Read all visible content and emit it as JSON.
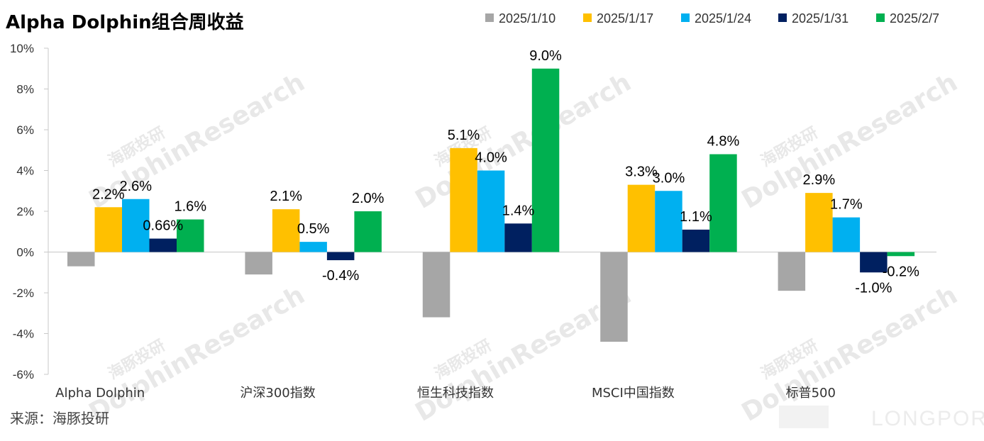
{
  "title": "Alpha Dolphin组合周收益",
  "source": "来源：海豚投研",
  "watermark": {
    "cn": "海豚投研",
    "en": "DolphinResearch",
    "brand": "LONGPORT"
  },
  "chart_data": {
    "type": "bar",
    "categories": [
      "Alpha Dolphin",
      "沪深300指数",
      "恒生科技指数",
      "MSCI中国指数",
      "标普500"
    ],
    "series": [
      {
        "name": "2025/1/10",
        "color": "#a6a6a6",
        "values": [
          -0.7,
          -1.1,
          -3.2,
          -4.4,
          -1.9
        ],
        "labels": [
          "",
          "",
          "",
          "",
          ""
        ]
      },
      {
        "name": "2025/1/17",
        "color": "#ffc000",
        "values": [
          2.2,
          2.1,
          5.1,
          3.3,
          2.9
        ],
        "labels": [
          "2.2%",
          "2.1%",
          "5.1%",
          "3.3%",
          "2.9%"
        ]
      },
      {
        "name": "2025/1/24",
        "color": "#00b0f0",
        "values": [
          2.6,
          0.5,
          4.0,
          3.0,
          1.7
        ],
        "labels": [
          "2.6%",
          "0.5%",
          "4.0%",
          "3.0%",
          "1.7%"
        ]
      },
      {
        "name": "2025/1/31",
        "color": "#002060",
        "values": [
          0.66,
          -0.4,
          1.4,
          1.1,
          -1.0
        ],
        "labels": [
          "0.66%",
          "-0.4%",
          "1.4%",
          "1.1%",
          "-1.0%"
        ]
      },
      {
        "name": "2025/2/7",
        "color": "#00b050",
        "values": [
          1.6,
          2.0,
          9.0,
          4.8,
          -0.2
        ],
        "labels": [
          "1.6%",
          "2.0%",
          "9.0%",
          "4.8%",
          "-0.2%"
        ]
      }
    ],
    "yticks": [
      "10%",
      "8%",
      "6%",
      "4%",
      "2%",
      "0%",
      "-2%",
      "-4%",
      "-6%"
    ],
    "ylim": [
      -6,
      10
    ],
    "grid": false,
    "legend_position": "top-right"
  }
}
